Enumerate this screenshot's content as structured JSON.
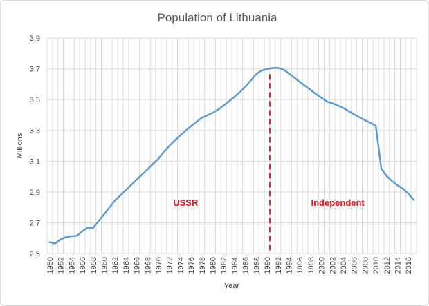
{
  "chart_data": {
    "type": "line",
    "title": "Population of Lithuania",
    "xlabel": "Year",
    "ylabel": "Millions",
    "xlim": [
      1950,
      2017
    ],
    "ylim": [
      2.5,
      3.9
    ],
    "y_ticks": [
      "2.5",
      "2.7",
      "2.9",
      "3.1",
      "3.3",
      "3.5",
      "3.7",
      "3.9"
    ],
    "x_ticks": [
      "1950",
      "1952",
      "1954",
      "1956",
      "1958",
      "1960",
      "1962",
      "1964",
      "1966",
      "1968",
      "1970",
      "1972",
      "1974",
      "1976",
      "1978",
      "1980",
      "1982",
      "1984",
      "1986",
      "1988",
      "1990",
      "1992",
      "1994",
      "1996",
      "1998",
      "2000",
      "2002",
      "2004",
      "2006",
      "2008",
      "2010",
      "2012",
      "2014",
      "2016"
    ],
    "grid": true,
    "legend": "none",
    "line_color": "#5b9bd5",
    "series": [
      {
        "x": [
          1950,
          1951,
          1952,
          1953,
          1954,
          1955,
          1956,
          1957,
          1958,
          1959,
          1960,
          1961,
          1962,
          1963,
          1964,
          1965,
          1966,
          1967,
          1968,
          1969,
          1970,
          1971,
          1972,
          1973,
          1974,
          1975,
          1976,
          1977,
          1978,
          1979,
          1980,
          1981,
          1982,
          1983,
          1984,
          1985,
          1986,
          1987,
          1988,
          1989,
          1990,
          1991,
          1992,
          1993,
          1994,
          1995,
          1996,
          1997,
          1998,
          1999,
          2000,
          2001,
          2002,
          2003,
          2004,
          2005,
          2006,
          2007,
          2008,
          2009,
          2010,
          2011,
          2012,
          2013,
          2014,
          2015,
          2016,
          2017
        ],
        "values": [
          2.573,
          2.565,
          2.592,
          2.607,
          2.612,
          2.615,
          2.645,
          2.668,
          2.668,
          2.711,
          2.755,
          2.8,
          2.845,
          2.878,
          2.912,
          2.946,
          2.98,
          3.014,
          3.048,
          3.082,
          3.115,
          3.16,
          3.199,
          3.234,
          3.267,
          3.298,
          3.327,
          3.356,
          3.382,
          3.398,
          3.414,
          3.436,
          3.461,
          3.49,
          3.518,
          3.549,
          3.584,
          3.624,
          3.666,
          3.689,
          3.698,
          3.705,
          3.706,
          3.695,
          3.67,
          3.643,
          3.615,
          3.589,
          3.562,
          3.536,
          3.512,
          3.487,
          3.476,
          3.462,
          3.446,
          3.425,
          3.404,
          3.385,
          3.366,
          3.349,
          3.33,
          3.052,
          3.003,
          2.971,
          2.943,
          2.921,
          2.888,
          2.848
        ]
      }
    ],
    "divider": {
      "x": 1990.5,
      "color": "#c00000"
    },
    "annotations": [
      {
        "text": "USSR",
        "x": 1975,
        "y": 2.81
      },
      {
        "text": "Independent",
        "x": 2003,
        "y": 2.81
      }
    ]
  }
}
